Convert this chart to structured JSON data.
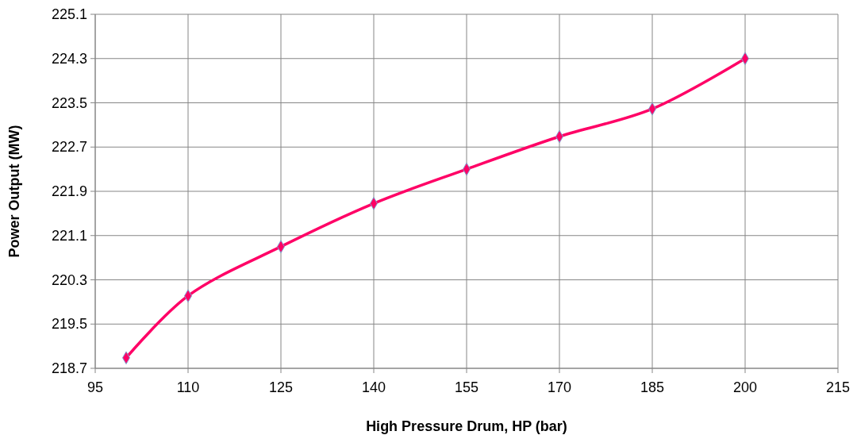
{
  "chart_data": {
    "type": "line",
    "xlabel": "High Pressure Drum, HP (bar)",
    "ylabel": "Power Output (MW)",
    "x": [
      100,
      110,
      125,
      140,
      155,
      170,
      185,
      200
    ],
    "series": [
      {
        "color": "#ff0066",
        "values": [
          218.89,
          220.01,
          220.9,
          221.68,
          222.3,
          222.89,
          223.39,
          224.3
        ]
      }
    ],
    "xlim": [
      95,
      215
    ],
    "xticks": [
      95,
      110,
      125,
      140,
      155,
      170,
      185,
      200,
      215
    ],
    "ylim": [
      218.7,
      225.1
    ],
    "yticks": [
      218.7,
      219.5,
      220.3,
      221.1,
      221.9,
      222.7,
      223.5,
      224.3,
      225.1
    ],
    "grid": true,
    "marker": "diamond",
    "line_style": "solid"
  }
}
